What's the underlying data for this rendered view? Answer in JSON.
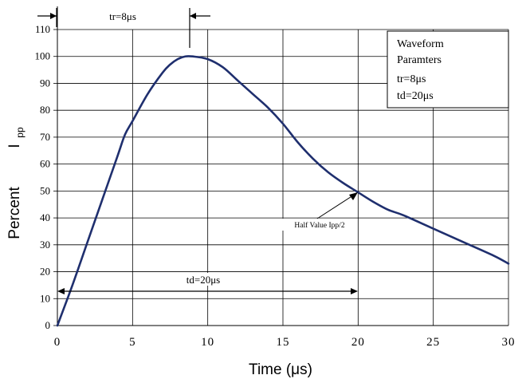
{
  "chart_data": {
    "type": "line",
    "xlabel": "Time (μs)",
    "ylabel": "Percent",
    "ylabel_sub": "I",
    "ylabel_subscript": "pp",
    "xlim": [
      0,
      30
    ],
    "ylim": [
      0,
      110
    ],
    "x_ticks": [
      "0",
      "5",
      "10",
      "15",
      "20",
      "25",
      "30"
    ],
    "y_ticks": [
      "0",
      "10",
      "20",
      "30",
      "40",
      "50",
      "60",
      "70",
      "80",
      "90",
      "100",
      "110"
    ],
    "grid": true,
    "series": [
      {
        "color": "#1f2f6e",
        "points": [
          [
            0,
            0
          ],
          [
            1,
            15
          ],
          [
            2,
            31
          ],
          [
            3,
            47
          ],
          [
            4,
            63
          ],
          [
            4.5,
            71
          ],
          [
            5,
            76
          ],
          [
            6,
            86
          ],
          [
            7,
            94
          ],
          [
            7.5,
            97
          ],
          [
            8,
            99
          ],
          [
            8.5,
            100
          ],
          [
            9,
            100
          ],
          [
            10,
            99
          ],
          [
            11,
            96
          ],
          [
            12,
            91
          ],
          [
            13,
            86
          ],
          [
            14,
            81
          ],
          [
            15,
            75
          ],
          [
            16,
            68
          ],
          [
            17,
            62
          ],
          [
            18,
            57
          ],
          [
            19,
            53
          ],
          [
            20,
            49.5
          ],
          [
            21,
            46
          ],
          [
            22,
            43
          ],
          [
            23,
            41
          ],
          [
            25,
            36
          ],
          [
            27,
            31
          ],
          [
            29,
            26
          ],
          [
            30,
            23
          ]
        ]
      }
    ],
    "annotations": {
      "tr_label": "tr=8μs",
      "td_label": "td=20μs",
      "half_value_label": "Half Value Ipp/2",
      "legend_lines": [
        "Waveform",
        "Paramters",
        "tr=8μs",
        "td=20μs"
      ]
    }
  }
}
